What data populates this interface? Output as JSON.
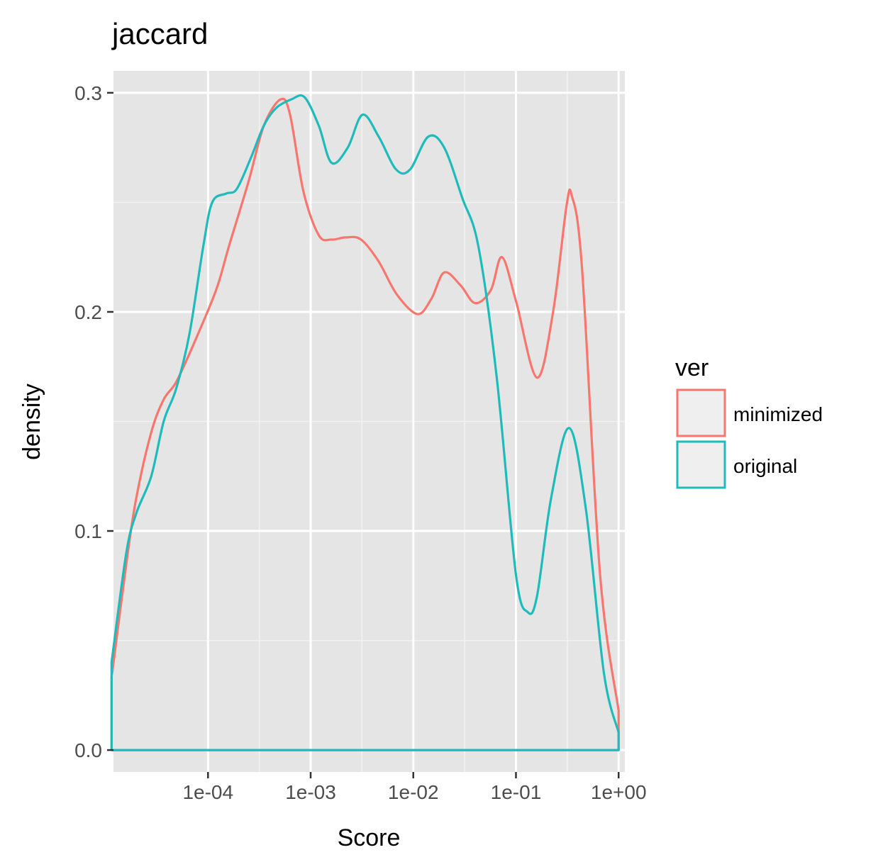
{
  "chart_data": {
    "type": "line",
    "subtype": "density",
    "title": "jaccard",
    "xlabel": "Score",
    "ylabel": "density",
    "x_scale": "log10",
    "xlim": [
      1.2e-05,
      1.15
    ],
    "ylim": [
      -0.01,
      0.31
    ],
    "x_ticks": [
      {
        "value": 0.0001,
        "label": "1e-04"
      },
      {
        "value": 0.001,
        "label": "1e-03"
      },
      {
        "value": 0.01,
        "label": "1e-02"
      },
      {
        "value": 0.1,
        "label": "1e-01"
      },
      {
        "value": 1,
        "label": "1e+00"
      }
    ],
    "y_ticks": [
      {
        "value": 0.0,
        "label": "0.0"
      },
      {
        "value": 0.1,
        "label": "0.1"
      },
      {
        "value": 0.2,
        "label": "0.2"
      },
      {
        "value": 0.3,
        "label": "0.3"
      }
    ],
    "grid": true,
    "background": "#e5e5e5",
    "legend": {
      "title": "ver",
      "position": "right",
      "entries": [
        {
          "label": "minimized",
          "color": "#f8766d"
        },
        {
          "label": "original",
          "color": "#1fbbbb"
        }
      ]
    },
    "series": [
      {
        "name": "minimized",
        "color": "#f8766d",
        "x": [
          1e-05,
          1.15e-05,
          1.6e-05,
          2e-05,
          2.8e-05,
          3.7e-05,
          4.9e-05,
          7.2e-05,
          0.00012,
          0.00016,
          0.00025,
          0.00035,
          0.00051,
          0.00063,
          0.00085,
          0.0012,
          0.0016,
          0.0022,
          0.0031,
          0.0046,
          0.0069,
          0.011,
          0.015,
          0.02,
          0.029,
          0.04,
          0.057,
          0.073,
          0.1,
          0.16,
          0.23,
          0.31,
          0.35,
          0.44,
          0.66,
          1.0
        ],
        "y": [
          0.0,
          0.033,
          0.085,
          0.115,
          0.145,
          0.16,
          0.168,
          0.185,
          0.21,
          0.23,
          0.26,
          0.285,
          0.297,
          0.29,
          0.255,
          0.235,
          0.233,
          0.234,
          0.233,
          0.223,
          0.208,
          0.199,
          0.206,
          0.218,
          0.212,
          0.204,
          0.21,
          0.225,
          0.205,
          0.17,
          0.2,
          0.248,
          0.253,
          0.22,
          0.08,
          0.018
        ]
      },
      {
        "name": "original",
        "color": "#1fbbbb",
        "x": [
          1e-05,
          1.15e-05,
          1.6e-05,
          2e-05,
          2.8e-05,
          3.7e-05,
          4.9e-05,
          6.6e-05,
          9e-05,
          0.00011,
          0.00015,
          0.00019,
          0.00026,
          0.00035,
          0.00046,
          0.00065,
          0.00087,
          0.0012,
          0.0016,
          0.0023,
          0.0032,
          0.0046,
          0.0068,
          0.0093,
          0.014,
          0.02,
          0.03,
          0.043,
          0.065,
          0.1,
          0.13,
          0.16,
          0.22,
          0.33,
          0.48,
          0.72,
          1.0
        ],
        "y": [
          0.0,
          0.04,
          0.09,
          0.108,
          0.125,
          0.15,
          0.165,
          0.19,
          0.23,
          0.25,
          0.254,
          0.256,
          0.27,
          0.285,
          0.293,
          0.297,
          0.298,
          0.285,
          0.268,
          0.275,
          0.29,
          0.28,
          0.265,
          0.265,
          0.28,
          0.275,
          0.252,
          0.23,
          0.17,
          0.08,
          0.063,
          0.07,
          0.115,
          0.147,
          0.11,
          0.035,
          0.008
        ]
      }
    ]
  }
}
